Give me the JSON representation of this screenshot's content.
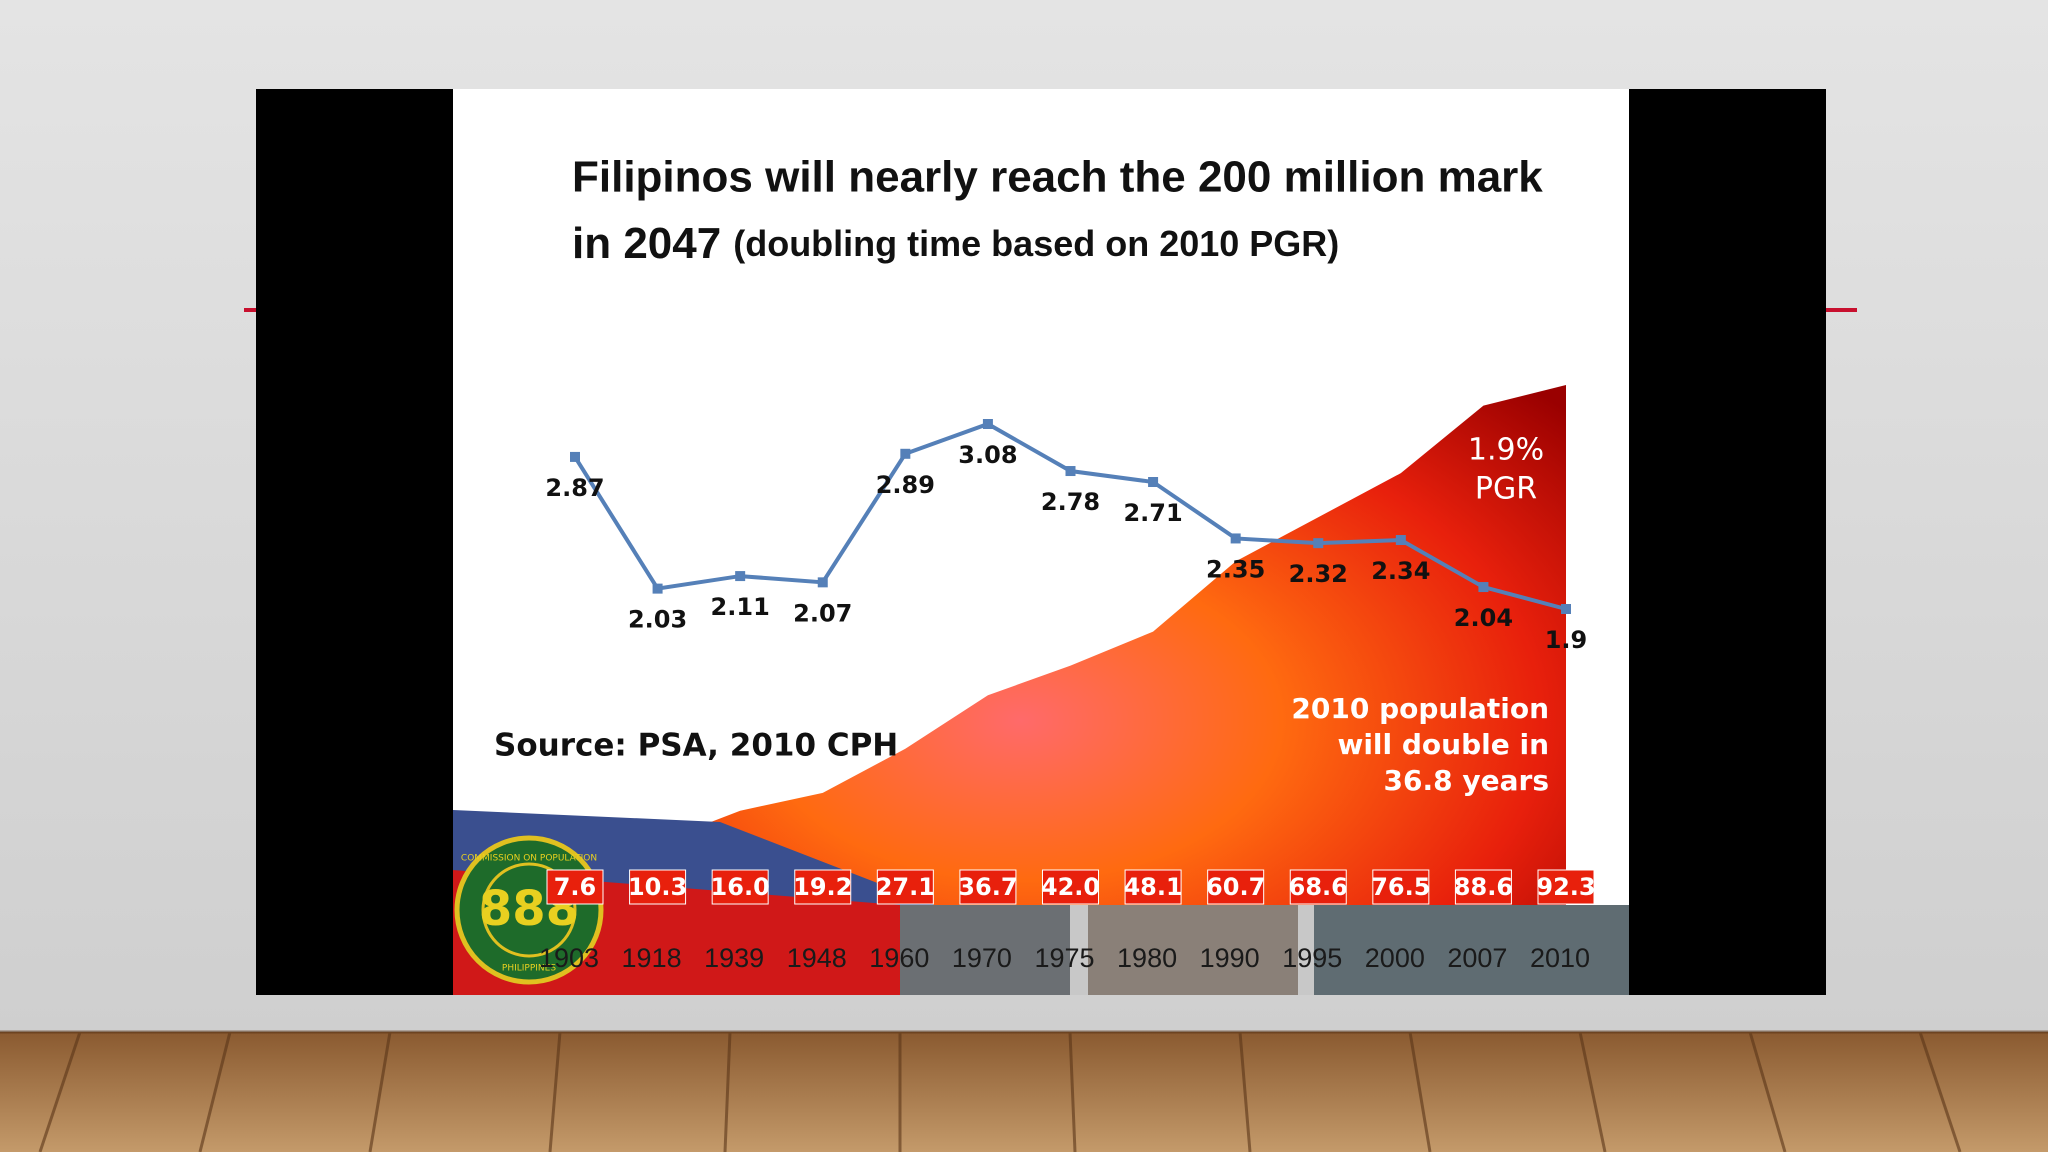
{
  "chart_data": {
    "type": "line",
    "title_lines": [
      "Filipinos will nearly reach the 200 million mark",
      "in 2047"
    ],
    "subtitle": "(doubling time based on 2010 PGR)",
    "categories": [
      "1903",
      "1918",
      "1939",
      "1948",
      "1960",
      "1970",
      "1975",
      "1980",
      "1990",
      "1995",
      "2000",
      "2007",
      "2010"
    ],
    "series": [
      {
        "type": "line",
        "color": "#5580b8",
        "values": [
          2.87,
          2.03,
          2.11,
          2.07,
          2.89,
          3.08,
          2.78,
          2.71,
          2.35,
          2.32,
          2.34,
          2.04,
          1.9
        ]
      },
      {
        "type": "area",
        "color": "#e8200c",
        "values": [
          7.6,
          10.3,
          16.0,
          19.2,
          27.1,
          36.7,
          42.0,
          48.1,
          60.7,
          68.6,
          76.5,
          88.6,
          92.3
        ],
        "value_labels": [
          "7.6",
          "10.3",
          "16.0",
          "19.2",
          "27.1",
          "36.7",
          "42.0",
          "48.1",
          "60.7",
          "68.6",
          "76.5",
          "88.6",
          "92.3"
        ]
      }
    ],
    "annotations": {
      "pgr": [
        "1.9%",
        "PGR"
      ],
      "doubling": [
        "2010 population",
        "will double in",
        "36.8 years"
      ],
      "source": "Source: PSA, 2010 CPH"
    },
    "logo": {
      "top": "COMMISSION ON POPULATION",
      "bottom": "PHILIPPINES"
    }
  }
}
